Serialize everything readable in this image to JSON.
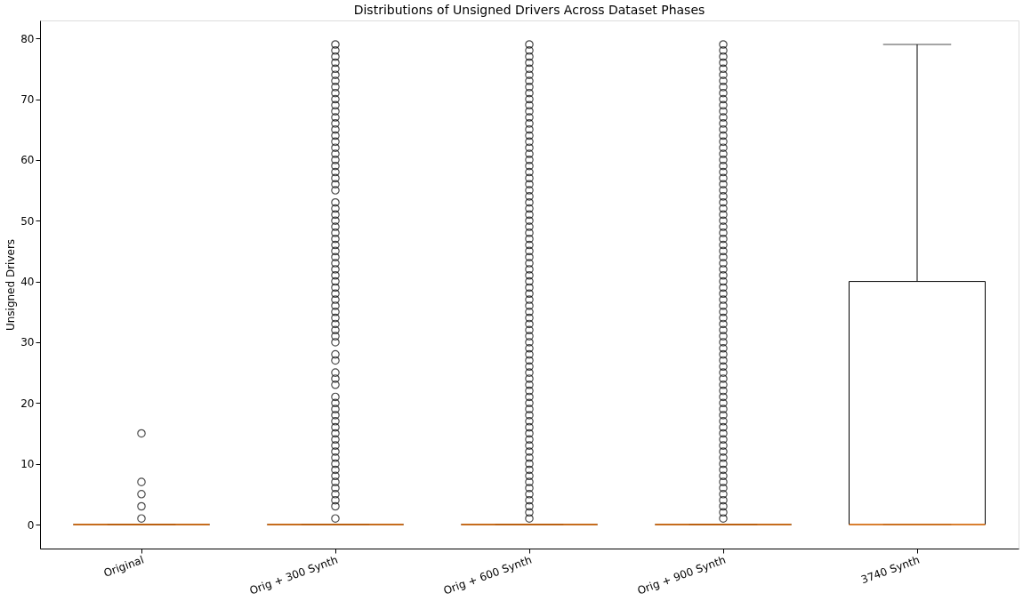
{
  "chart_data": {
    "type": "box",
    "title": "Distributions of Unsigned Drivers  Across Dataset Phases",
    "ylabel": "Unsigned Drivers",
    "categories": [
      "Original",
      "Orig + 300 Synth",
      "Orig + 600 Synth",
      "Orig + 900 Synth",
      "3740 Synth"
    ],
    "boxes": [
      {
        "low": 0,
        "q1": 0,
        "median": 0,
        "q3": 0,
        "high": 0,
        "outliers": [
          1,
          3,
          5,
          7,
          15
        ]
      },
      {
        "low": 0,
        "q1": 0,
        "median": 0,
        "q3": 0,
        "high": 0,
        "outliers": [
          1,
          3,
          4,
          5,
          6,
          7,
          8,
          9,
          10,
          11,
          12,
          13,
          14,
          15,
          16,
          17,
          18,
          19,
          20,
          21,
          23,
          24,
          25,
          27,
          28,
          30,
          31,
          32,
          33,
          34,
          35,
          36,
          37,
          38,
          39,
          40,
          41,
          42,
          43,
          44,
          45,
          46,
          47,
          48,
          49,
          50,
          51,
          52,
          53,
          55,
          56,
          57,
          58,
          59,
          60,
          61,
          62,
          63,
          64,
          65,
          66,
          67,
          68,
          69,
          70,
          71,
          72,
          73,
          74,
          75,
          76,
          77,
          78,
          79
        ]
      },
      {
        "low": 0,
        "q1": 0,
        "median": 0,
        "q3": 0,
        "high": 0,
        "outliers": [
          1,
          2,
          3,
          4,
          5,
          6,
          7,
          8,
          9,
          10,
          11,
          12,
          13,
          14,
          15,
          16,
          17,
          18,
          19,
          20,
          21,
          22,
          23,
          24,
          25,
          26,
          27,
          28,
          29,
          30,
          31,
          32,
          33,
          34,
          35,
          36,
          37,
          38,
          39,
          40,
          41,
          42,
          43,
          44,
          45,
          46,
          47,
          48,
          49,
          50,
          51,
          52,
          53,
          54,
          55,
          56,
          57,
          58,
          59,
          60,
          61,
          62,
          63,
          64,
          65,
          66,
          67,
          68,
          69,
          70,
          71,
          72,
          73,
          74,
          75,
          76,
          77,
          78,
          79
        ]
      },
      {
        "low": 0,
        "q1": 0,
        "median": 0,
        "q3": 0,
        "high": 0,
        "outliers": [
          1,
          2,
          3,
          4,
          5,
          6,
          7,
          8,
          9,
          10,
          11,
          12,
          13,
          14,
          15,
          16,
          17,
          18,
          19,
          20,
          21,
          22,
          23,
          24,
          25,
          26,
          27,
          28,
          29,
          30,
          31,
          32,
          33,
          34,
          35,
          36,
          37,
          38,
          39,
          40,
          41,
          42,
          43,
          44,
          45,
          46,
          47,
          48,
          49,
          50,
          51,
          52,
          53,
          54,
          55,
          56,
          57,
          58,
          59,
          60,
          61,
          62,
          63,
          64,
          65,
          66,
          67,
          68,
          69,
          70,
          71,
          72,
          73,
          74,
          75,
          76,
          77,
          78,
          79
        ]
      },
      {
        "low": 0,
        "q1": 0,
        "median": 0,
        "q3": 40,
        "high": 79
      }
    ],
    "color": "#ff7f0e",
    "ylim": [
      -3.95,
      82.95
    ],
    "yticks": [
      0,
      10,
      20,
      30,
      40,
      50,
      60,
      70,
      80
    ],
    "grid": false
  }
}
